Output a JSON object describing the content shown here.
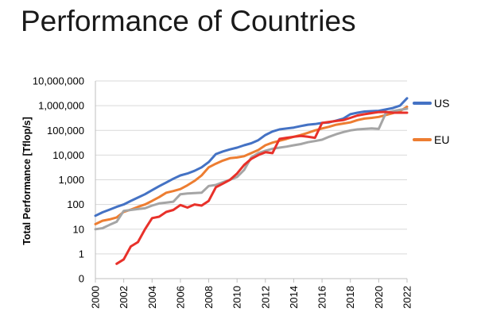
{
  "slide": {
    "title": "Performance of Countries"
  },
  "chart_data": {
    "type": "line",
    "title": "",
    "ylabel": "Total Performance  [Tflop/s]",
    "xlabel": "",
    "y_scale": "log",
    "y_tick_labels": [
      "0",
      "1",
      "10",
      "100",
      "1,000",
      "10,000",
      "100,000",
      "1,000,000",
      "10,000,000"
    ],
    "y_tick_values": [
      0.1,
      1,
      10,
      100,
      1000,
      10000,
      100000,
      1000000,
      10000000
    ],
    "x_tick_labels": [
      "2000",
      "2002",
      "2004",
      "2006",
      "2008",
      "2010",
      "2012",
      "2014",
      "2016",
      "2018",
      "2020",
      "2022"
    ],
    "xlim": [
      2000,
      2022
    ],
    "ylim": [
      0.1,
      10000000
    ],
    "grid": true,
    "legend": "right",
    "series": [
      {
        "name": "US",
        "color": "#4472c4",
        "x": [
          2000,
          2000.5,
          2001,
          2001.5,
          2002,
          2002.5,
          2003,
          2003.5,
          2004,
          2004.5,
          2005,
          2005.5,
          2006,
          2006.5,
          2007,
          2007.5,
          2008,
          2008.5,
          2009,
          2009.5,
          2010,
          2010.5,
          2011,
          2011.5,
          2012,
          2012.5,
          2013,
          2013.5,
          2014,
          2014.5,
          2015,
          2015.5,
          2016,
          2016.5,
          2017,
          2017.5,
          2018,
          2018.5,
          2019,
          2019.5,
          2020,
          2020.5,
          2021,
          2021.5,
          2022
        ],
        "values": [
          35,
          48,
          62,
          80,
          100,
          140,
          190,
          260,
          380,
          550,
          780,
          1100,
          1500,
          1800,
          2300,
          3200,
          5200,
          11000,
          14000,
          17000,
          20000,
          25000,
          30000,
          40000,
          65000,
          90000,
          110000,
          120000,
          130000,
          150000,
          170000,
          180000,
          200000,
          210000,
          250000,
          300000,
          450000,
          520000,
          580000,
          600000,
          620000,
          700000,
          800000,
          1000000,
          2000000
        ]
      },
      {
        "name": "EU",
        "color": "#ed7d31",
        "x": [
          2000,
          2000.5,
          2001,
          2001.5,
          2002,
          2002.5,
          2003,
          2003.5,
          2004,
          2004.5,
          2005,
          2005.5,
          2006,
          2006.5,
          2007,
          2007.5,
          2008,
          2008.5,
          2009,
          2009.5,
          2010,
          2010.5,
          2011,
          2011.5,
          2012,
          2012.5,
          2013,
          2013.5,
          2014,
          2014.5,
          2015,
          2015.5,
          2016,
          2016.5,
          2017,
          2017.5,
          2018,
          2018.5,
          2019,
          2019.5,
          2020,
          2020.5,
          2021,
          2021.5,
          2022
        ],
        "values": [
          16,
          22,
          25,
          30,
          50,
          62,
          80,
          100,
          140,
          200,
          300,
          350,
          420,
          600,
          900,
          1500,
          3200,
          4500,
          6000,
          7500,
          8000,
          9000,
          12000,
          16000,
          25000,
          32000,
          38000,
          45000,
          55000,
          65000,
          80000,
          100000,
          120000,
          140000,
          170000,
          190000,
          210000,
          260000,
          300000,
          320000,
          350000,
          420000,
          500000,
          600000,
          900000
        ]
      },
      {
        "name": "",
        "color": "#a5a5a5",
        "x": [
          2000,
          2000.5,
          2001,
          2001.5,
          2002,
          2002.5,
          2003,
          2003.5,
          2004,
          2004.5,
          2005,
          2005.5,
          2006,
          2006.5,
          2007,
          2007.5,
          2008,
          2008.5,
          2009,
          2009.5,
          2010,
          2010.5,
          2011,
          2011.5,
          2012,
          2012.5,
          2013,
          2013.5,
          2014,
          2014.5,
          2015,
          2015.5,
          2016,
          2016.5,
          2017,
          2017.5,
          2018,
          2018.5,
          2019,
          2019.5,
          2020,
          2020.5,
          2021,
          2021.5,
          2022
        ],
        "values": [
          10,
          11,
          15,
          20,
          55,
          60,
          65,
          70,
          90,
          110,
          120,
          130,
          260,
          280,
          290,
          300,
          560,
          620,
          800,
          1000,
          1300,
          2500,
          8000,
          12000,
          15000,
          18000,
          20000,
          22000,
          25000,
          28000,
          33000,
          37000,
          42000,
          55000,
          70000,
          85000,
          100000,
          110000,
          115000,
          120000,
          115000,
          500000,
          600000,
          680000,
          750000
        ]
      },
      {
        "name": "",
        "color": "#e8312a",
        "x": [
          2001.5,
          2002,
          2002.5,
          2003,
          2003.5,
          2004,
          2004.5,
          2005,
          2005.5,
          2006,
          2006.5,
          2007,
          2007.5,
          2008,
          2008.5,
          2009,
          2009.5,
          2010,
          2010.5,
          2011,
          2011.5,
          2012,
          2012.5,
          2013,
          2013.5,
          2014,
          2014.5,
          2015,
          2015.5,
          2016,
          2016.5,
          2017,
          2017.5,
          2018,
          2018.5,
          2019,
          2019.5,
          2020,
          2020.5,
          2021,
          2021.5,
          2022
        ],
        "values": [
          0.4,
          0.6,
          2,
          3,
          10,
          28,
          32,
          50,
          60,
          95,
          75,
          100,
          90,
          140,
          500,
          700,
          1000,
          1800,
          4000,
          7000,
          10000,
          13000,
          12000,
          45000,
          50000,
          55000,
          60000,
          55000,
          50000,
          200000,
          220000,
          240000,
          260000,
          320000,
          400000,
          450000,
          500000,
          550000,
          560000,
          520000,
          520000,
          520000
        ]
      }
    ]
  }
}
